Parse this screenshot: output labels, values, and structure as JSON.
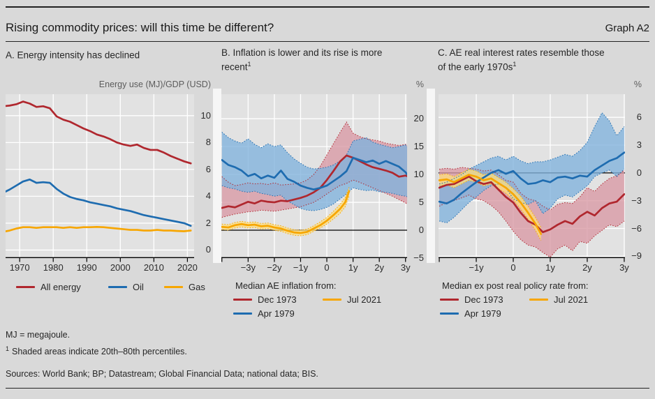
{
  "header": {
    "title": "Rising commodity prices: will this time be different?",
    "graph_label": "Graph A2"
  },
  "footnotes": {
    "note_mj": "MJ = megajoule.",
    "note1_sup": "1",
    "note1": "Shaded areas indicate 20th–80th percentiles.",
    "sources": "Sources: World Bank; BP; Datastream; Global Financial Data; national data; BIS."
  },
  "colors": {
    "red": "#b0272e",
    "blue": "#1e6cb0",
    "yellow": "#f7a600",
    "red_band": "#d898a4",
    "blue_band": "#80b2dc",
    "yellow_band": "#fcdd7f",
    "plot_bg": "#e2e2e2",
    "grid": "#ffffff",
    "axis": "#000000",
    "page_bg": "#d9d9d9"
  },
  "chart_data": [
    {
      "type": "line",
      "title": "A. Energy intensity has declined",
      "title_sup": "",
      "unit": "Energy use (MJ)/GDP (USD)",
      "xlim": [
        1965.8,
        2022
      ],
      "ylim": [
        -0.6,
        11.6
      ],
      "grid": true,
      "zero_line": null,
      "x_ticks": [
        {
          "v": 1970,
          "label": "1970"
        },
        {
          "v": 1980,
          "label": "1980"
        },
        {
          "v": 1990,
          "label": "1990"
        },
        {
          "v": 2000,
          "label": "2000"
        },
        {
          "v": 2010,
          "label": "2010"
        },
        {
          "v": 2020,
          "label": "2020"
        }
      ],
      "y_ticks": [
        {
          "v": 0,
          "label": "0"
        },
        {
          "v": 2,
          "label": "2"
        },
        {
          "v": 4,
          "label": "4"
        },
        {
          "v": 6,
          "label": "6"
        },
        {
          "v": 8,
          "label": "8"
        },
        {
          "v": 10,
          "label": "10"
        }
      ],
      "x_grid": [
        1970,
        1980,
        1990,
        2000,
        2010,
        2020
      ],
      "x_axis_ticks": [
        1970,
        1980,
        1990,
        2000,
        2010,
        2020
      ],
      "x": [
        1965,
        1967,
        1969,
        1971,
        1973,
        1975,
        1977,
        1979,
        1981,
        1983,
        1985,
        1987,
        1989,
        1991,
        1993,
        1995,
        1997,
        1999,
        2001,
        2003,
        2005,
        2007,
        2009,
        2011,
        2013,
        2015,
        2017,
        2019,
        2021
      ],
      "series": [
        {
          "name": "All energy",
          "color": "red",
          "values": [
            10.7,
            10.75,
            10.85,
            11.05,
            10.9,
            10.65,
            10.7,
            10.55,
            9.95,
            9.7,
            9.55,
            9.3,
            9.05,
            8.85,
            8.6,
            8.45,
            8.25,
            8.0,
            7.85,
            7.75,
            7.85,
            7.6,
            7.45,
            7.45,
            7.25,
            7.0,
            6.8,
            6.6,
            6.45
          ]
        },
        {
          "name": "Oil",
          "color": "blue",
          "values": [
            4.25,
            4.5,
            4.8,
            5.1,
            5.25,
            5.0,
            5.05,
            5.0,
            4.55,
            4.2,
            3.95,
            3.8,
            3.7,
            3.55,
            3.45,
            3.35,
            3.25,
            3.1,
            3.0,
            2.9,
            2.75,
            2.6,
            2.5,
            2.4,
            2.3,
            2.2,
            2.1,
            2.0,
            1.8
          ]
        },
        {
          "name": "Gas",
          "color": "yellow",
          "values": [
            1.35,
            1.45,
            1.6,
            1.7,
            1.7,
            1.65,
            1.7,
            1.7,
            1.7,
            1.65,
            1.7,
            1.65,
            1.7,
            1.7,
            1.72,
            1.7,
            1.65,
            1.6,
            1.55,
            1.5,
            1.5,
            1.45,
            1.45,
            1.5,
            1.45,
            1.45,
            1.42,
            1.4,
            1.45
          ]
        }
      ]
    },
    {
      "type": "line+band",
      "title": "B. Inflation is lower and its rise is more recent",
      "title_sup": "1",
      "unit": "%",
      "legend_title": "Median AE inflation from:",
      "xlim": [
        -4.02,
        3.06
      ],
      "ylim": [
        -5,
        24.4
      ],
      "zero_line": 0,
      "x_ticks": [
        {
          "v": -3,
          "label": "−3y"
        },
        {
          "v": -2,
          "label": "−2y"
        },
        {
          "v": -1,
          "label": "−1y"
        },
        {
          "v": 0,
          "label": "0"
        },
        {
          "v": 1,
          "label": "1y"
        },
        {
          "v": 2,
          "label": "2y"
        },
        {
          "v": 3,
          "label": "3y"
        }
      ],
      "y_ticks": [
        {
          "v": -5,
          "label": "−5"
        },
        {
          "v": 0,
          "label": "0"
        },
        {
          "v": 5,
          "label": "5"
        },
        {
          "v": 10,
          "label": "10"
        },
        {
          "v": 15,
          "label": "15"
        },
        {
          "v": 20,
          "label": "20"
        }
      ],
      "x_grid": [
        -3,
        -2,
        -1,
        0,
        1,
        2,
        3
      ],
      "x_axis_ticks": [
        -4,
        -3,
        -2,
        -1,
        0,
        1,
        2,
        3
      ],
      "x": [
        -4,
        -3.75,
        -3.5,
        -3.25,
        -3,
        -2.75,
        -2.5,
        -2.25,
        -2,
        -1.75,
        -1.5,
        -1.25,
        -1,
        -0.75,
        -0.5,
        -0.25,
        0,
        0.25,
        0.5,
        0.75,
        1,
        1.25,
        1.5,
        1.75,
        2,
        2.25,
        2.5,
        2.75,
        3,
        3.06
      ],
      "series": [
        {
          "name": "Dec 1973",
          "color": "red",
          "values": [
            4.0,
            4.3,
            4.1,
            4.6,
            5.1,
            4.8,
            5.3,
            5.1,
            5.0,
            5.3,
            5.2,
            5.5,
            5.8,
            6.2,
            6.8,
            7.6,
            9.0,
            10.6,
            12.3,
            13.4,
            13.0,
            12.4,
            11.8,
            11.3,
            11.0,
            10.7,
            10.3,
            9.6,
            9.8,
            9.7
          ],
          "band_low": [
            2.3,
            2.6,
            2.9,
            3.1,
            3.3,
            3.4,
            3.6,
            3.5,
            3.4,
            3.6,
            3.8,
            4.0,
            4.2,
            4.6,
            5.0,
            5.7,
            6.5,
            7.3,
            8.0,
            8.4,
            9.0,
            8.6,
            8.1,
            7.6,
            7.1,
            6.6,
            6.1,
            5.5,
            4.9,
            4.7
          ],
          "band_high": [
            9.6,
            8.6,
            8.0,
            8.2,
            8.5,
            8.3,
            8.4,
            8.2,
            8.5,
            8.1,
            8.2,
            8.3,
            8.5,
            9.0,
            10.0,
            11.5,
            13.5,
            15.5,
            17.5,
            19.4,
            17.4,
            16.8,
            16.4,
            16.2,
            16.0,
            15.6,
            15.4,
            15.2,
            15.4,
            15.2
          ]
        },
        {
          "name": "Apr 1979",
          "color": "blue",
          "values": [
            12.6,
            11.7,
            11.3,
            10.7,
            9.7,
            10.1,
            9.3,
            9.8,
            9.4,
            10.7,
            9.2,
            8.7,
            8.0,
            7.6,
            7.3,
            7.6,
            8.0,
            8.8,
            9.6,
            10.6,
            13.0,
            12.6,
            12.2,
            12.5,
            11.9,
            12.4,
            11.9,
            11.4,
            10.4,
            10.0
          ],
          "band_low": [
            8.0,
            7.6,
            7.4,
            7.0,
            6.8,
            7.0,
            6.6,
            6.4,
            6.1,
            6.3,
            5.2,
            4.6,
            3.9,
            3.6,
            3.5,
            3.7,
            4.1,
            4.7,
            5.6,
            6.5,
            7.6,
            7.3,
            7.1,
            7.2,
            6.9,
            6.8,
            6.6,
            6.3,
            6.1,
            6.0
          ],
          "band_high": [
            17.6,
            16.6,
            16.0,
            15.6,
            16.4,
            15.4,
            14.8,
            15.5,
            15.0,
            15.3,
            13.9,
            12.8,
            12.0,
            11.3,
            11.0,
            11.1,
            11.3,
            11.7,
            12.4,
            13.5,
            16.0,
            16.3,
            16.6,
            15.8,
            15.4,
            15.1,
            14.8,
            15.0,
            15.3,
            15.0
          ]
        },
        {
          "name": "Jul 2021",
          "color": "yellow",
          "x": [
            -4,
            -3.75,
            -3.5,
            -3.25,
            -3,
            -2.75,
            -2.5,
            -2.25,
            -2,
            -1.75,
            -1.5,
            -1.25,
            -1,
            -0.75,
            -0.5,
            -0.25,
            0,
            0.25,
            0.5,
            0.7,
            0.85
          ],
          "values": [
            0.6,
            0.5,
            0.9,
            1.1,
            0.9,
            1.0,
            0.7,
            0.8,
            0.5,
            0.3,
            -0.1,
            -0.4,
            -0.5,
            -0.3,
            0.3,
            0.9,
            1.7,
            2.7,
            3.8,
            5.0,
            7.0
          ],
          "band_low": [
            0.1,
            0.0,
            0.4,
            0.6,
            0.4,
            0.5,
            0.2,
            0.3,
            0.0,
            -0.2,
            -0.6,
            -0.9,
            -1.0,
            -0.8,
            -0.2,
            0.4,
            1.1,
            2.0,
            3.0,
            4.2,
            6.1
          ],
          "band_high": [
            1.1,
            1.0,
            1.4,
            1.6,
            1.4,
            1.5,
            1.2,
            1.3,
            1.0,
            0.8,
            0.4,
            0.1,
            0.0,
            0.2,
            0.8,
            1.5,
            2.3,
            3.4,
            4.6,
            5.9,
            7.7
          ]
        }
      ]
    },
    {
      "type": "line+band",
      "title": "C. AE real interest rates resemble those of the early 1970s",
      "title_sup": "1",
      "unit": "%",
      "legend_title": "Median ex post real policy rate from:",
      "xlim": [
        -2.02,
        3.02
      ],
      "ylim": [
        -9.2,
        8.5
      ],
      "zero_line": 0,
      "x_ticks": [
        {
          "v": -1,
          "label": "−1y"
        },
        {
          "v": 0,
          "label": "0"
        },
        {
          "v": 1,
          "label": "1y"
        },
        {
          "v": 2,
          "label": "2y"
        },
        {
          "v": 3,
          "label": "3y"
        }
      ],
      "y_ticks": [
        {
          "v": -9,
          "label": "−9"
        },
        {
          "v": -6,
          "label": "−6"
        },
        {
          "v": -3,
          "label": "−3"
        },
        {
          "v": 0,
          "label": "0"
        },
        {
          "v": 3,
          "label": "3"
        },
        {
          "v": 6,
          "label": "6"
        }
      ],
      "x_grid": [
        -1,
        0,
        1,
        2,
        3
      ],
      "x_axis_ticks": [
        -2,
        -1,
        0,
        1,
        2,
        3
      ],
      "x": [
        -2,
        -1.8,
        -1.6,
        -1.4,
        -1.2,
        -1,
        -0.8,
        -0.6,
        -0.4,
        -0.2,
        0,
        0.2,
        0.4,
        0.6,
        0.8,
        1,
        1.2,
        1.4,
        1.6,
        1.8,
        2,
        2.2,
        2.4,
        2.6,
        2.8,
        3
      ],
      "series": [
        {
          "name": "Dec 1973",
          "color": "red",
          "values": [
            -1.6,
            -1.3,
            -1.2,
            -0.8,
            -0.4,
            -0.9,
            -1.2,
            -1.0,
            -1.8,
            -2.6,
            -3.2,
            -4.3,
            -5.2,
            -5.6,
            -6.4,
            -6.1,
            -5.6,
            -5.2,
            -5.5,
            -4.7,
            -4.2,
            -4.6,
            -3.8,
            -3.3,
            -3.1,
            -2.3
          ],
          "band_low": [
            -3.6,
            -3.2,
            -3.0,
            -2.7,
            -2.4,
            -2.8,
            -3.0,
            -3.5,
            -4.2,
            -5.2,
            -6.3,
            -7.2,
            -7.8,
            -8.0,
            -8.6,
            -9.1,
            -8.2,
            -7.8,
            -8.4,
            -7.4,
            -7.6,
            -6.8,
            -6.2,
            -5.6,
            -5.8,
            -5.2
          ],
          "band_high": [
            0.4,
            0.5,
            0.4,
            0.6,
            0.5,
            0.4,
            0.2,
            0.3,
            -0.2,
            -0.8,
            -1.0,
            -2.2,
            -2.8,
            -3.0,
            -3.6,
            -4.0,
            -3.4,
            -3.2,
            -3.3,
            -2.6,
            -1.6,
            -2.0,
            -1.2,
            -0.6,
            -0.3,
            0.3
          ]
        },
        {
          "name": "Apr 1979",
          "color": "blue",
          "values": [
            -3.1,
            -3.3,
            -2.9,
            -2.2,
            -1.6,
            -1.0,
            -0.5,
            0.0,
            0.3,
            -0.1,
            0.2,
            -0.6,
            -1.2,
            -1.1,
            -0.8,
            -1.0,
            -0.5,
            -0.4,
            -0.6,
            -0.3,
            -0.4,
            0.3,
            0.8,
            1.3,
            1.6,
            2.2
          ],
          "band_low": [
            -5.2,
            -5.4,
            -4.8,
            -4.0,
            -3.2,
            -2.6,
            -1.9,
            -1.4,
            -1.2,
            -1.6,
            -2.8,
            -3.2,
            -3.4,
            -3.0,
            -4.4,
            -3.8,
            -2.8,
            -2.4,
            -2.6,
            -2.0,
            -1.4,
            -0.4,
            0.0,
            0.3,
            -0.4,
            0.4
          ],
          "band_high": [
            -1.2,
            -1.0,
            -0.6,
            -0.2,
            0.4,
            0.8,
            1.2,
            1.6,
            1.8,
            1.4,
            1.8,
            1.3,
            1.0,
            1.2,
            1.2,
            1.4,
            1.7,
            2.0,
            1.8,
            2.4,
            3.3,
            5.0,
            6.5,
            5.6,
            4.0,
            5.0
          ]
        },
        {
          "name": "Jul 2021",
          "color": "yellow",
          "x": [
            -2,
            -1.8,
            -1.6,
            -1.4,
            -1.2,
            -1,
            -0.8,
            -0.6,
            -0.4,
            -0.2,
            0,
            0.2,
            0.4,
            0.6,
            0.75
          ],
          "values": [
            -0.8,
            -0.7,
            -1.0,
            -0.6,
            -0.2,
            -0.4,
            -0.8,
            -0.6,
            -1.1,
            -1.6,
            -2.3,
            -3.2,
            -4.3,
            -5.5,
            -6.6
          ],
          "band_low": [
            -1.4,
            -1.3,
            -1.6,
            -1.2,
            -0.8,
            -1.0,
            -1.4,
            -1.2,
            -1.7,
            -2.2,
            -2.9,
            -3.9,
            -5.0,
            -6.2,
            -7.3
          ],
          "band_high": [
            -0.2,
            -0.1,
            -0.4,
            0.0,
            0.4,
            0.2,
            -0.2,
            0.0,
            -0.5,
            -1.0,
            -1.7,
            -2.5,
            -3.6,
            -4.8,
            -5.9
          ]
        }
      ]
    }
  ]
}
